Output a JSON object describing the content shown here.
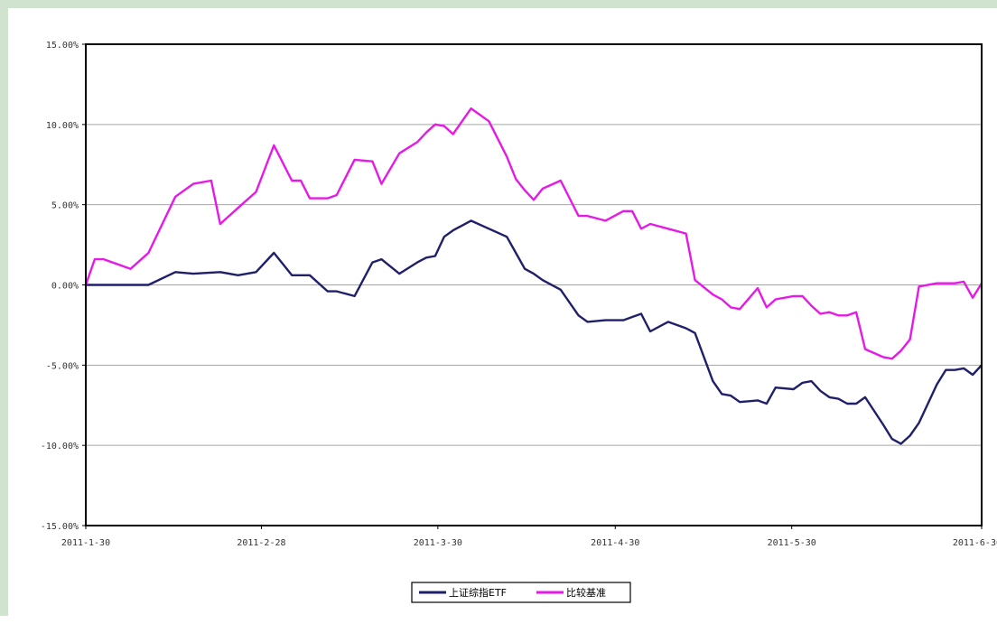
{
  "chart_data": {
    "type": "line",
    "title": "",
    "xlabel": "",
    "ylabel": "",
    "ylim": [
      -15,
      15
    ],
    "xlim": [
      0,
      100
    ],
    "grid": true,
    "legend_position": "bottom-center",
    "y_ticks": [
      {
        "value": 15,
        "label": "15.00%"
      },
      {
        "value": 10,
        "label": "10.00%"
      },
      {
        "value": 5,
        "label": "5.00%"
      },
      {
        "value": 0,
        "label": "0.00%"
      },
      {
        "value": -5,
        "label": "-5.00%"
      },
      {
        "value": -10,
        "label": "-10.00%"
      },
      {
        "value": -15,
        "label": "-15.00%"
      }
    ],
    "x_ticks": [
      {
        "pos": 0,
        "label": "2011-1-30"
      },
      {
        "pos": 19.6,
        "label": "2011-2-28"
      },
      {
        "pos": 39.3,
        "label": "2011-3-30"
      },
      {
        "pos": 59.1,
        "label": "2011-4-30"
      },
      {
        "pos": 78.8,
        "label": "2011-5-30"
      },
      {
        "pos": 100,
        "label": "2011-6-30"
      }
    ],
    "series": [
      {
        "name": "上证综指ETF",
        "color": "#1f1f6b",
        "x": [
          0,
          1,
          2,
          5,
          7,
          10,
          12,
          15,
          17,
          19,
          21,
          23,
          24,
          25,
          27,
          28,
          30,
          32,
          33,
          35,
          37,
          38,
          39,
          40,
          41,
          43,
          45,
          47,
          48,
          49,
          50,
          51,
          53,
          55,
          56,
          58,
          60,
          61,
          62,
          63,
          65,
          67,
          68,
          70,
          71,
          72,
          73,
          75,
          76,
          77,
          79,
          80,
          81,
          82,
          83,
          84,
          85,
          86,
          87,
          89,
          90,
          91,
          92,
          93,
          95,
          96,
          97,
          98,
          99,
          100
        ],
        "y": [
          0,
          0,
          0,
          0,
          0,
          0.8,
          0.7,
          0.8,
          0.6,
          0.8,
          2.0,
          0.6,
          0.6,
          0.6,
          -0.4,
          -0.4,
          -0.7,
          1.4,
          1.6,
          0.7,
          1.4,
          1.7,
          1.8,
          3.0,
          3.4,
          4.0,
          3.5,
          3.0,
          2.0,
          1.0,
          0.7,
          0.3,
          -0.3,
          -1.9,
          -2.3,
          -2.2,
          -2.2,
          -2.0,
          -1.8,
          -2.9,
          -2.3,
          -2.7,
          -3.0,
          -6.0,
          -6.8,
          -6.9,
          -7.3,
          -7.2,
          -7.4,
          -6.4,
          -6.5,
          -6.1,
          -6.0,
          -6.6,
          -7.0,
          -7.1,
          -7.4,
          -7.4,
          -7.0,
          -8.7,
          -9.6,
          -9.9,
          -9.4,
          -8.6,
          -6.2,
          -5.3,
          -5.3,
          -5.2,
          -5.6,
          -5.0
        ]
      },
      {
        "name": "比较基准",
        "color": "#e61ae6",
        "x": [
          0,
          1,
          2,
          5,
          7,
          10,
          12,
          14,
          15,
          17,
          19,
          21,
          23,
          24,
          25,
          27,
          28,
          30,
          32,
          33,
          35,
          37,
          38,
          39,
          40,
          41,
          43,
          45,
          47,
          48,
          49,
          50,
          51,
          53,
          55,
          56,
          58,
          60,
          61,
          62,
          63,
          65,
          67,
          68,
          70,
          71,
          72,
          73,
          75,
          76,
          77,
          79,
          80,
          81,
          82,
          83,
          84,
          85,
          86,
          87,
          89,
          90,
          91,
          92,
          93,
          95,
          96,
          97,
          98,
          99,
          100
        ],
        "y": [
          0,
          1.6,
          1.6,
          1.0,
          2.0,
          5.5,
          6.3,
          6.5,
          3.8,
          4.8,
          5.8,
          8.7,
          6.5,
          6.5,
          5.4,
          5.4,
          5.6,
          7.8,
          7.7,
          6.3,
          8.2,
          8.9,
          9.5,
          10.0,
          9.9,
          9.4,
          11.0,
          10.2,
          8.0,
          6.6,
          5.9,
          5.3,
          6.0,
          6.5,
          4.3,
          4.3,
          4.0,
          4.6,
          4.6,
          3.5,
          3.8,
          3.5,
          3.2,
          0.3,
          -0.6,
          -0.9,
          -1.4,
          -1.5,
          -0.2,
          -1.4,
          -0.9,
          -0.7,
          -0.7,
          -1.3,
          -1.8,
          -1.7,
          -1.9,
          -1.9,
          -1.7,
          -4.0,
          -4.5,
          -4.6,
          -4.1,
          -3.4,
          -0.1,
          0.1,
          0.1,
          0.1,
          0.2,
          -0.8,
          0.1
        ]
      }
    ]
  }
}
